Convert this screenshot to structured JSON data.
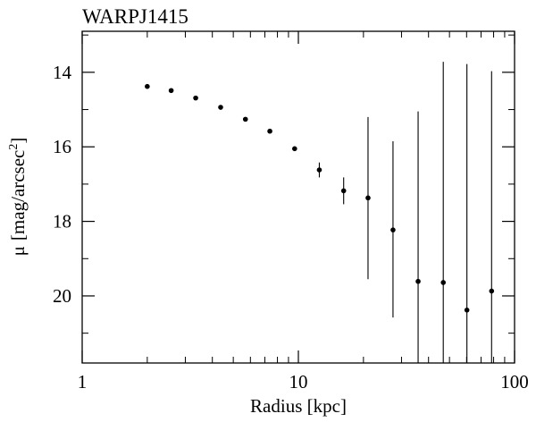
{
  "chart_data": {
    "type": "scatter",
    "title": "WARPJ1415",
    "xlabel": "Radius [kpc]",
    "ylabel_symbol": "μ",
    "ylabel_text": "[mag/arcsec",
    "ylabel_sup": "2",
    "ylabel_close": "]",
    "x_scale": "log",
    "xlim": [
      1,
      100
    ],
    "ylim": [
      21.8,
      12.9
    ],
    "y_inverted": true,
    "x_ticks": [
      {
        "value": 1,
        "label": "1"
      },
      {
        "value": 10,
        "label": "10"
      },
      {
        "value": 100,
        "label": "100"
      }
    ],
    "y_ticks": [
      {
        "value": 14,
        "label": "14"
      },
      {
        "value": 16,
        "label": "16"
      },
      {
        "value": 18,
        "label": "18"
      },
      {
        "value": 20,
        "label": "20"
      }
    ],
    "y_minor_ticks": [
      13,
      15,
      17,
      19,
      21
    ],
    "grid": false,
    "points": [
      {
        "x": 2.0,
        "y": 14.38,
        "y_low": null,
        "y_high": null
      },
      {
        "x": 2.58,
        "y": 14.49,
        "y_low": null,
        "y_high": null
      },
      {
        "x": 3.35,
        "y": 14.69,
        "y_low": null,
        "y_high": null
      },
      {
        "x": 4.37,
        "y": 14.94,
        "y_low": null,
        "y_high": null
      },
      {
        "x": 5.69,
        "y": 15.26,
        "y_low": null,
        "y_high": null
      },
      {
        "x": 7.38,
        "y": 15.58,
        "y_low": null,
        "y_high": null
      },
      {
        "x": 9.61,
        "y": 16.05,
        "y_low": null,
        "y_high": null
      },
      {
        "x": 12.5,
        "y": 16.62,
        "y_low": 16.42,
        "y_high": 16.82
      },
      {
        "x": 16.2,
        "y": 17.18,
        "y_low": 16.82,
        "y_high": 17.54
      },
      {
        "x": 21.0,
        "y": 17.37,
        "y_low": 15.2,
        "y_high": 19.55
      },
      {
        "x": 27.4,
        "y": 18.23,
        "y_low": 15.85,
        "y_high": 20.58
      },
      {
        "x": 35.8,
        "y": 19.61,
        "y_low": 15.05,
        "y_high": 21.8
      },
      {
        "x": 46.8,
        "y": 19.64,
        "y_low": 13.72,
        "y_high": 21.8
      },
      {
        "x": 60.2,
        "y": 20.38,
        "y_low": 13.78,
        "y_high": 21.8
      },
      {
        "x": 78.3,
        "y": 19.87,
        "y_low": 13.97,
        "y_high": 21.8
      }
    ]
  }
}
